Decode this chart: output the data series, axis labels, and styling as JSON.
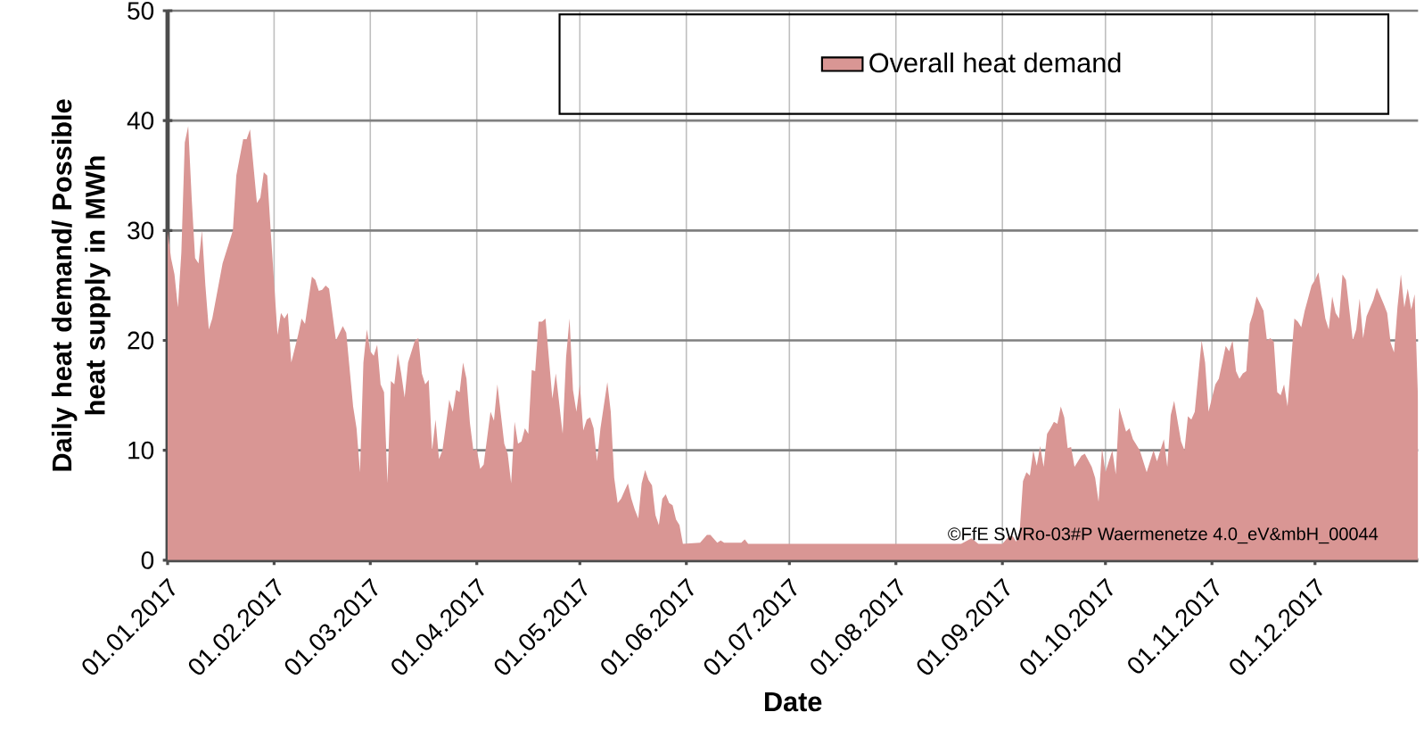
{
  "chart_data": {
    "type": "area",
    "xlabel": "Date",
    "ylabel": "Daily heat demand/ Possible heat supply in MWh",
    "xlim": [
      "2017-01-01",
      "2017-12-31"
    ],
    "xticks": [
      {
        "value": "2017-01-01",
        "label": "01.01.2017"
      },
      {
        "value": "2017-02-01",
        "label": "01.02.2017"
      },
      {
        "value": "2017-03-01",
        "label": "01.03.2017"
      },
      {
        "value": "2017-04-01",
        "label": "01.04.2017"
      },
      {
        "value": "2017-05-01",
        "label": "01.05.2017"
      },
      {
        "value": "2017-06-01",
        "label": "01.06.2017"
      },
      {
        "value": "2017-07-01",
        "label": "01.07.2017"
      },
      {
        "value": "2017-08-01",
        "label": "01.08.2017"
      },
      {
        "value": "2017-09-01",
        "label": "01.09.2017"
      },
      {
        "value": "2017-10-01",
        "label": "01.10.2017"
      },
      {
        "value": "2017-11-01",
        "label": "01.11.2017"
      },
      {
        "value": "2017-12-01",
        "label": "01.12.2017"
      }
    ],
    "ylim": [
      0,
      50
    ],
    "yticks": [
      0,
      10,
      20,
      30,
      40,
      50
    ],
    "grid": true,
    "legend": "top right",
    "annotations": [
      "©FfE SWRo-03#P Waermenetze 4.0_eV&mbH_00044"
    ],
    "x": [
      "2017-01-01",
      "2017-01-02",
      "2017-01-03",
      "2017-01-04",
      "2017-01-05",
      "2017-01-06",
      "2017-01-07",
      "2017-01-08",
      "2017-01-09",
      "2017-01-10",
      "2017-01-11",
      "2017-01-12",
      "2017-01-13",
      "2017-01-14",
      "2017-01-17",
      "2017-01-20",
      "2017-01-21",
      "2017-01-23",
      "2017-01-24",
      "2017-01-25",
      "2017-01-27",
      "2017-01-28",
      "2017-01-29",
      "2017-01-30",
      "2017-01-31",
      "2017-02-02",
      "2017-02-03",
      "2017-02-04",
      "2017-02-05",
      "2017-02-06",
      "2017-02-08",
      "2017-02-09",
      "2017-02-10",
      "2017-02-12",
      "2017-02-13",
      "2017-02-14",
      "2017-02-15",
      "2017-02-16",
      "2017-02-17",
      "2017-02-19",
      "2017-02-21",
      "2017-02-22",
      "2017-02-24",
      "2017-02-25",
      "2017-02-26",
      "2017-02-27",
      "2017-02-28",
      "2017-03-01",
      "2017-03-02",
      "2017-03-03",
      "2017-03-04",
      "2017-03-05",
      "2017-03-06",
      "2017-03-07",
      "2017-03-08",
      "2017-03-09",
      "2017-03-10",
      "2017-03-11",
      "2017-03-12",
      "2017-03-14",
      "2017-03-15",
      "2017-03-16",
      "2017-03-17",
      "2017-03-18",
      "2017-03-19",
      "2017-03-20",
      "2017-03-21",
      "2017-03-22",
      "2017-03-24",
      "2017-03-25",
      "2017-03-26",
      "2017-03-27",
      "2017-03-28",
      "2017-03-29",
      "2017-03-30",
      "2017-03-31",
      "2017-04-01",
      "2017-04-02",
      "2017-04-03",
      "2017-04-05",
      "2017-04-06",
      "2017-04-07",
      "2017-04-09",
      "2017-04-10",
      "2017-04-11",
      "2017-04-12",
      "2017-04-13",
      "2017-04-14",
      "2017-04-15",
      "2017-04-16",
      "2017-04-17",
      "2017-04-18",
      "2017-04-19",
      "2017-04-20",
      "2017-04-21",
      "2017-04-23",
      "2017-04-24",
      "2017-04-26",
      "2017-04-27",
      "2017-04-28",
      "2017-04-29",
      "2017-04-30",
      "2017-05-01",
      "2017-05-02",
      "2017-05-03",
      "2017-05-04",
      "2017-05-05",
      "2017-05-06",
      "2017-05-07",
      "2017-05-09",
      "2017-05-10",
      "2017-05-11",
      "2017-05-12",
      "2017-05-13",
      "2017-05-14",
      "2017-05-15",
      "2017-05-16",
      "2017-05-17",
      "2017-05-18",
      "2017-05-19",
      "2017-05-20",
      "2017-05-21",
      "2017-05-22",
      "2017-05-23",
      "2017-05-24",
      "2017-05-25",
      "2017-05-26",
      "2017-05-27",
      "2017-05-28",
      "2017-05-29",
      "2017-05-30",
      "2017-05-31",
      "2017-06-05",
      "2017-06-07",
      "2017-06-08",
      "2017-06-10",
      "2017-06-11",
      "2017-06-12",
      "2017-06-17",
      "2017-06-18",
      "2017-06-19",
      "2017-08-20",
      "2017-08-23",
      "2017-08-25",
      "2017-09-01",
      "2017-09-03",
      "2017-09-04",
      "2017-09-05",
      "2017-09-06",
      "2017-09-07",
      "2017-09-08",
      "2017-09-09",
      "2017-09-10",
      "2017-09-11",
      "2017-09-12",
      "2017-09-13",
      "2017-09-14",
      "2017-09-15",
      "2017-09-16",
      "2017-09-17",
      "2017-09-18",
      "2017-09-19",
      "2017-09-20",
      "2017-09-21",
      "2017-09-22",
      "2017-09-24",
      "2017-09-25",
      "2017-09-27",
      "2017-09-28",
      "2017-09-29",
      "2017-09-30",
      "2017-10-01",
      "2017-10-03",
      "2017-10-04",
      "2017-10-05",
      "2017-10-07",
      "2017-10-08",
      "2017-10-09",
      "2017-10-11",
      "2017-10-13",
      "2017-10-15",
      "2017-10-16",
      "2017-10-18",
      "2017-10-19",
      "2017-10-20",
      "2017-10-21",
      "2017-10-23",
      "2017-10-24",
      "2017-10-25",
      "2017-10-26",
      "2017-10-27",
      "2017-10-29",
      "2017-10-30",
      "2017-10-31",
      "2017-11-02",
      "2017-11-03",
      "2017-11-04",
      "2017-11-05",
      "2017-11-06",
      "2017-11-07",
      "2017-11-08",
      "2017-11-09",
      "2017-11-10",
      "2017-11-11",
      "2017-11-12",
      "2017-11-13",
      "2017-11-14",
      "2017-11-16",
      "2017-11-17",
      "2017-11-18",
      "2017-11-19",
      "2017-11-20",
      "2017-11-21",
      "2017-11-22",
      "2017-11-23",
      "2017-11-25",
      "2017-11-26",
      "2017-11-27",
      "2017-11-28",
      "2017-11-30",
      "2017-12-01",
      "2017-12-02",
      "2017-12-04",
      "2017-12-05",
      "2017-12-06",
      "2017-12-07",
      "2017-12-08",
      "2017-12-09",
      "2017-12-10",
      "2017-12-12",
      "2017-12-13",
      "2017-12-14",
      "2017-12-15",
      "2017-12-16",
      "2017-12-18",
      "2017-12-19",
      "2017-12-21",
      "2017-12-22",
      "2017-12-23",
      "2017-12-24",
      "2017-12-25",
      "2017-12-26",
      "2017-12-27",
      "2017-12-28",
      "2017-12-29",
      "2017-12-30",
      "2017-12-31"
    ],
    "series": [
      {
        "name": "Overall heat demand",
        "color": "#d99694",
        "values": [
          30,
          27.5,
          26,
          23,
          28,
          38,
          39.5,
          33,
          27.5,
          27,
          30,
          25,
          21,
          22,
          27,
          30,
          35,
          38.3,
          38.3,
          39.2,
          32.5,
          33,
          35.3,
          35,
          30,
          20.5,
          22.5,
          22,
          22.5,
          18,
          20.5,
          22,
          21.5,
          25.8,
          25.5,
          24.5,
          24.6,
          25,
          24.7,
          20,
          21.3,
          20.7,
          14,
          12,
          8,
          18,
          21,
          19,
          18.6,
          19.6,
          16,
          15.3,
          7,
          16.3,
          16,
          18.8,
          17,
          14.8,
          18,
          20,
          20.2,
          17,
          16,
          16.4,
          10,
          12.8,
          9.2,
          10,
          14.6,
          13.5,
          15.5,
          15.3,
          18,
          16.5,
          12.5,
          10,
          10.1,
          8.3,
          8.7,
          13.5,
          12.7,
          16,
          10.6,
          9.7,
          7,
          12.6,
          10.6,
          10.8,
          12,
          11.5,
          17.3,
          17.2,
          21.7,
          21.7,
          22,
          14.7,
          17,
          11.5,
          18.5,
          22,
          15.5,
          13.5,
          16,
          11.8,
          12.8,
          13,
          12,
          9,
          12,
          16.2,
          13.5,
          7.5,
          5.2,
          5.6,
          6.3,
          7,
          5.6,
          4.6,
          3.8,
          7,
          8.2,
          7.3,
          6.8,
          4.1,
          3.2,
          5.6,
          6,
          5.2,
          5,
          3.7,
          3.2,
          1.5,
          1.6,
          2.3,
          2.3,
          1.6,
          1.8,
          1.6,
          1.6,
          1.9,
          1.5,
          1.5,
          2,
          1.5,
          1.5,
          2.2,
          2.2,
          1.7,
          2.5,
          7.2,
          8,
          7.7,
          10,
          8.6,
          10.4,
          8.5,
          11.5,
          12,
          12.6,
          12.4,
          14,
          13,
          10.2,
          10.3,
          8.5,
          9.5,
          9.7,
          8.5,
          7.5,
          5.3,
          10.2,
          8,
          10,
          7.8,
          13.9,
          11.7,
          12,
          11,
          10,
          8,
          10,
          9,
          11,
          8.5,
          13.2,
          14.5,
          10.8,
          10,
          13.1,
          12.8,
          13.5,
          20,
          18,
          13.5,
          16,
          16.5,
          18,
          19.5,
          19,
          20,
          17.2,
          16.5,
          17,
          17.2,
          21.5,
          22.5,
          24,
          22.7,
          20,
          20.2,
          19.9,
          15.3,
          15,
          16,
          14,
          22,
          21.7,
          21.2,
          22.7,
          25,
          25.5,
          26.2,
          22,
          21,
          24,
          22.5,
          22,
          26,
          25.5,
          20,
          21,
          23.8,
          20.2,
          22.2,
          23.7,
          24.8,
          23.3,
          22.5,
          19.8,
          18.9,
          23,
          26,
          23,
          24.7,
          22.8,
          24.2,
          14.5
        ]
      }
    ]
  }
}
